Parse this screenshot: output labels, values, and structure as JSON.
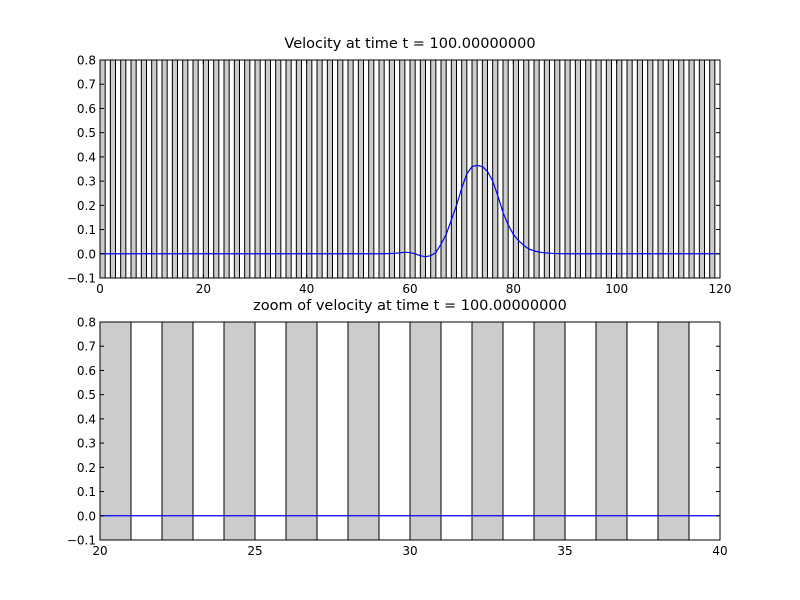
{
  "chart_data": [
    {
      "type": "line",
      "title": "Velocity at time t =   100.00000000",
      "xlabel": "",
      "ylabel": "",
      "xlim": [
        0,
        120
      ],
      "ylim": [
        -0.1,
        0.8
      ],
      "xticks": [
        0,
        20,
        40,
        60,
        80,
        100,
        120
      ],
      "yticks": [
        -0.1,
        0.0,
        0.1,
        0.2,
        0.3,
        0.4,
        0.5,
        0.6,
        0.7,
        0.8
      ],
      "x_tick_labels": [
        "0",
        "20",
        "40",
        "60",
        "80",
        "100",
        "120"
      ],
      "y_tick_labels": [
        "−0.1",
        "0.0",
        "0.1",
        "0.2",
        "0.3",
        "0.4",
        "0.5",
        "0.6",
        "0.7",
        "0.8"
      ],
      "grid": false,
      "shaded_bands": {
        "start": 0,
        "stop": 120,
        "period": 2,
        "width": 1,
        "color": "#cccccc"
      },
      "series": [
        {
          "color": "#0000ff",
          "x": [
            0,
            50,
            55,
            57,
            58,
            59,
            60,
            61,
            62,
            63,
            64,
            65,
            66,
            67,
            68,
            69,
            70,
            71,
            72,
            73,
            74,
            75,
            76,
            77,
            78,
            79,
            80,
            81,
            82,
            83,
            84,
            85,
            86,
            88,
            90,
            120
          ],
          "y": [
            0.0,
            0.0,
            0.0,
            0.002,
            0.004,
            0.006,
            0.005,
            0.0,
            -0.008,
            -0.012,
            -0.008,
            0.005,
            0.04,
            0.08,
            0.14,
            0.2,
            0.27,
            0.33,
            0.36,
            0.365,
            0.36,
            0.34,
            0.3,
            0.24,
            0.17,
            0.12,
            0.08,
            0.055,
            0.035,
            0.02,
            0.012,
            0.007,
            0.004,
            0.001,
            0.0,
            0.0
          ]
        }
      ]
    },
    {
      "type": "line",
      "title": "zoom of velocity at time t =   100.00000000",
      "xlabel": "",
      "ylabel": "",
      "xlim": [
        20,
        40
      ],
      "ylim": [
        -0.1,
        0.8
      ],
      "xticks": [
        20,
        25,
        30,
        35,
        40
      ],
      "yticks": [
        -0.1,
        0.0,
        0.1,
        0.2,
        0.3,
        0.4,
        0.5,
        0.6,
        0.7,
        0.8
      ],
      "x_tick_labels": [
        "20",
        "25",
        "30",
        "35",
        "40"
      ],
      "y_tick_labels": [
        "−0.1",
        "0.0",
        "0.1",
        "0.2",
        "0.3",
        "0.4",
        "0.5",
        "0.6",
        "0.7",
        "0.8"
      ],
      "grid": false,
      "shaded_bands": {
        "start": 20,
        "stop": 40,
        "period": 2,
        "width": 1,
        "color": "#cccccc"
      },
      "series": [
        {
          "color": "#0000ff",
          "x": [
            20,
            40
          ],
          "y": [
            0.0,
            0.0
          ]
        }
      ]
    }
  ]
}
